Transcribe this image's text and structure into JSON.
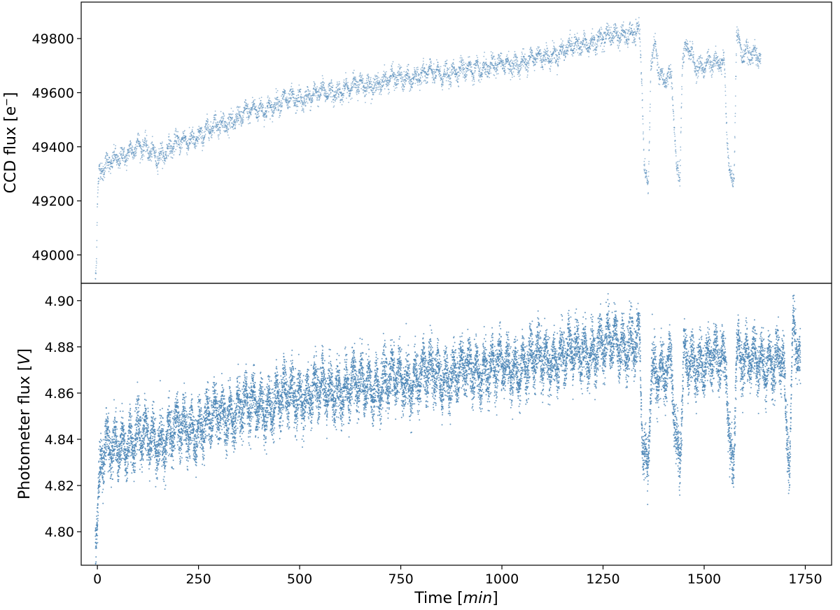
{
  "chart_data": [
    {
      "id": "ccd",
      "type": "scatter",
      "title": "",
      "ylabel": "CCD flux [e$^-$]",
      "ylabel_main": "CCD flux [e",
      "ylabel_sup": "−",
      "ylabel_end": "]",
      "xlabel": "",
      "xlim": [
        -40,
        1815
      ],
      "ylim": [
        48895,
        49935
      ],
      "yticks": [
        49000,
        49200,
        49400,
        49600,
        49800
      ],
      "ytick_labels": [
        "49000",
        "49200",
        "49400",
        "49600",
        "49800"
      ],
      "grid": false,
      "legend": "none",
      "color": "#4682b4",
      "x_range": [
        -5,
        1640
      ],
      "trend": [
        {
          "x": -4,
          "y": 48940
        },
        {
          "x": -2,
          "y": 49000
        },
        {
          "x": 0,
          "y": 49200
        },
        {
          "x": 5,
          "y": 49300
        },
        {
          "x": 25,
          "y": 49330
        },
        {
          "x": 50,
          "y": 49360
        },
        {
          "x": 100,
          "y": 49400
        },
        {
          "x": 150,
          "y": 49370
        },
        {
          "x": 200,
          "y": 49410
        },
        {
          "x": 250,
          "y": 49440
        },
        {
          "x": 300,
          "y": 49480
        },
        {
          "x": 400,
          "y": 49540
        },
        {
          "x": 500,
          "y": 49580
        },
        {
          "x": 600,
          "y": 49610
        },
        {
          "x": 700,
          "y": 49640
        },
        {
          "x": 800,
          "y": 49665
        },
        {
          "x": 900,
          "y": 49680
        },
        {
          "x": 1000,
          "y": 49700
        },
        {
          "x": 1100,
          "y": 49730
        },
        {
          "x": 1200,
          "y": 49780
        },
        {
          "x": 1250,
          "y": 49800
        },
        {
          "x": 1300,
          "y": 49820
        },
        {
          "x": 1340,
          "y": 49820
        },
        {
          "x": 1346,
          "y": 49650
        },
        {
          "x": 1352,
          "y": 49300
        },
        {
          "x": 1362,
          "y": 49240
        },
        {
          "x": 1368,
          "y": 49700
        },
        {
          "x": 1380,
          "y": 49780
        },
        {
          "x": 1390,
          "y": 49660
        },
        {
          "x": 1420,
          "y": 49660
        },
        {
          "x": 1432,
          "y": 49290
        },
        {
          "x": 1440,
          "y": 49280
        },
        {
          "x": 1446,
          "y": 49700
        },
        {
          "x": 1460,
          "y": 49780
        },
        {
          "x": 1480,
          "y": 49700
        },
        {
          "x": 1550,
          "y": 49710
        },
        {
          "x": 1558,
          "y": 49400
        },
        {
          "x": 1566,
          "y": 49280
        },
        {
          "x": 1574,
          "y": 49300
        },
        {
          "x": 1580,
          "y": 49820
        },
        {
          "x": 1595,
          "y": 49740
        },
        {
          "x": 1640,
          "y": 49730
        }
      ],
      "scatter_sigma": 22
    },
    {
      "id": "photometer",
      "type": "scatter",
      "title": "",
      "ylabel": "Photometer flux [V]",
      "ylabel_main": "Photometer flux [",
      "ylabel_italic": "V",
      "ylabel_end": "]",
      "xlabel": "Time [min]",
      "xlabel_main": "Time [",
      "xlabel_italic": "min",
      "xlabel_end": "]",
      "xlim": [
        -40,
        1815
      ],
      "ylim": [
        4.7855,
        4.9075
      ],
      "xticks": [
        0,
        250,
        500,
        750,
        1000,
        1250,
        1500,
        1750
      ],
      "xtick_labels": [
        "0",
        "250",
        "500",
        "750",
        "1000",
        "1250",
        "1500",
        "1750"
      ],
      "yticks": [
        4.8,
        4.82,
        4.84,
        4.86,
        4.88,
        4.9
      ],
      "ytick_labels": [
        "4.80",
        "4.82",
        "4.84",
        "4.86",
        "4.88",
        "4.90"
      ],
      "grid": false,
      "legend": "none",
      "color": "#4682b4",
      "x_range": [
        -5,
        1738
      ],
      "trend": [
        {
          "x": -4,
          "y": 4.8
        },
        {
          "x": 0,
          "y": 4.805
        },
        {
          "x": 10,
          "y": 4.832
        },
        {
          "x": 50,
          "y": 4.838
        },
        {
          "x": 100,
          "y": 4.84
        },
        {
          "x": 150,
          "y": 4.84
        },
        {
          "x": 200,
          "y": 4.843
        },
        {
          "x": 250,
          "y": 4.846
        },
        {
          "x": 300,
          "y": 4.85
        },
        {
          "x": 400,
          "y": 4.855
        },
        {
          "x": 500,
          "y": 4.859
        },
        {
          "x": 600,
          "y": 4.862
        },
        {
          "x": 700,
          "y": 4.864
        },
        {
          "x": 800,
          "y": 4.867
        },
        {
          "x": 900,
          "y": 4.869
        },
        {
          "x": 1000,
          "y": 4.871
        },
        {
          "x": 1100,
          "y": 4.874
        },
        {
          "x": 1200,
          "y": 4.878
        },
        {
          "x": 1300,
          "y": 4.882
        },
        {
          "x": 1340,
          "y": 4.882
        },
        {
          "x": 1348,
          "y": 4.835
        },
        {
          "x": 1360,
          "y": 4.822
        },
        {
          "x": 1370,
          "y": 4.87
        },
        {
          "x": 1420,
          "y": 4.872
        },
        {
          "x": 1430,
          "y": 4.835
        },
        {
          "x": 1440,
          "y": 4.828
        },
        {
          "x": 1450,
          "y": 4.875
        },
        {
          "x": 1555,
          "y": 4.873
        },
        {
          "x": 1563,
          "y": 4.835
        },
        {
          "x": 1572,
          "y": 4.828
        },
        {
          "x": 1580,
          "y": 4.88
        },
        {
          "x": 1600,
          "y": 4.873
        },
        {
          "x": 1695,
          "y": 4.875
        },
        {
          "x": 1703,
          "y": 4.84
        },
        {
          "x": 1712,
          "y": 4.83
        },
        {
          "x": 1720,
          "y": 4.89
        },
        {
          "x": 1738,
          "y": 4.872
        }
      ],
      "scatter_sigma": 0.007
    }
  ]
}
